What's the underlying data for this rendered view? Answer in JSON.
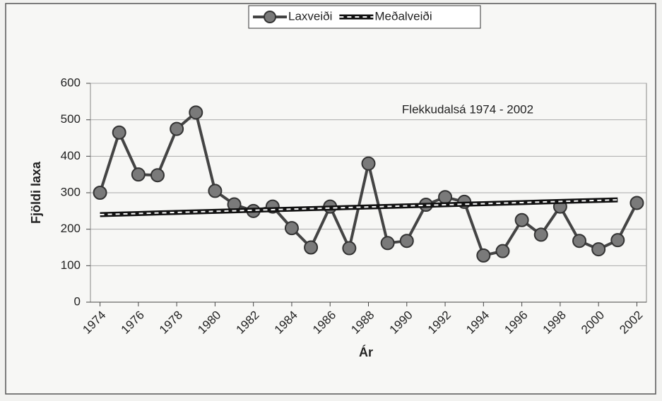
{
  "chart_data": {
    "type": "line",
    "annotation": "Flekkudalsá 1974 - 2002",
    "y_label": "Fjöldi laxa",
    "x_label": "Ár",
    "categories": [
      "1974",
      null,
      "1976",
      null,
      "1978",
      null,
      "1980",
      null,
      "1982",
      null,
      "1984",
      null,
      "1986",
      null,
      "1988",
      null,
      "1990",
      null,
      "1992",
      null,
      "1994",
      null,
      "1996",
      null,
      "1998",
      null,
      "2000",
      null,
      "2002"
    ],
    "series": [
      {
        "name": "Laxveiði",
        "color": "#444444",
        "marker": "circle",
        "values": [
          300,
          465,
          350,
          348,
          475,
          520,
          305,
          268,
          250,
          262,
          203,
          150,
          262,
          148,
          380,
          162,
          168,
          267,
          288,
          275,
          128,
          140,
          225,
          185,
          262,
          168,
          145,
          170,
          272
        ]
      },
      {
        "name": "Meðalveiði",
        "color": "#111111",
        "line_style": "double",
        "values": [
          240,
          241.5,
          243,
          244.5,
          246,
          247.5,
          249,
          250.5,
          252,
          253.5,
          255,
          256.5,
          258,
          259.5,
          261,
          262.5,
          264,
          265.5,
          267,
          268.5,
          270,
          271.5,
          273,
          274.5,
          276,
          277.5,
          279,
          280.5,
          null
        ]
      }
    ],
    "ylim": [
      0,
      600
    ],
    "yticks": [
      0,
      100,
      200,
      300,
      400,
      500,
      600
    ],
    "grid": true,
    "legend": "top"
  }
}
